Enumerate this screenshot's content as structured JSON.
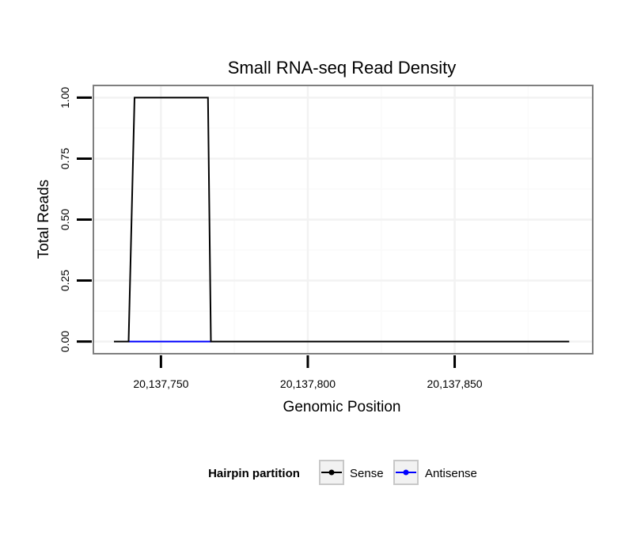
{
  "chart_data": {
    "type": "line",
    "title": "Small RNA-seq Read Density",
    "xlabel": "Genomic Position",
    "ylabel": "Total Reads",
    "xlim": [
      20137727,
      20137897
    ],
    "ylim": [
      -0.05,
      1.05
    ],
    "x_ticks": [
      20137750,
      20137800,
      20137850
    ],
    "x_tick_labels": [
      "20,137,750",
      "20,137,800",
      "20,137,850"
    ],
    "y_ticks": [
      0,
      0.25,
      0.5,
      0.75,
      1.0
    ],
    "y_tick_labels": [
      "0.00",
      "0.25",
      "0.50",
      "0.75",
      "1.00"
    ],
    "grid": true,
    "legend": {
      "title": "Hairpin partition",
      "position": "bottom"
    },
    "series": [
      {
        "name": "Sense",
        "color": "#000000",
        "x": [
          20137734,
          20137739,
          20137741,
          20137766,
          20137767,
          20137889
        ],
        "y": [
          0,
          0,
          1,
          1,
          0,
          0
        ]
      },
      {
        "name": "Antisense",
        "color": "#0000ff",
        "x": [
          20137739,
          20137767
        ],
        "y": [
          0,
          0
        ]
      }
    ]
  }
}
